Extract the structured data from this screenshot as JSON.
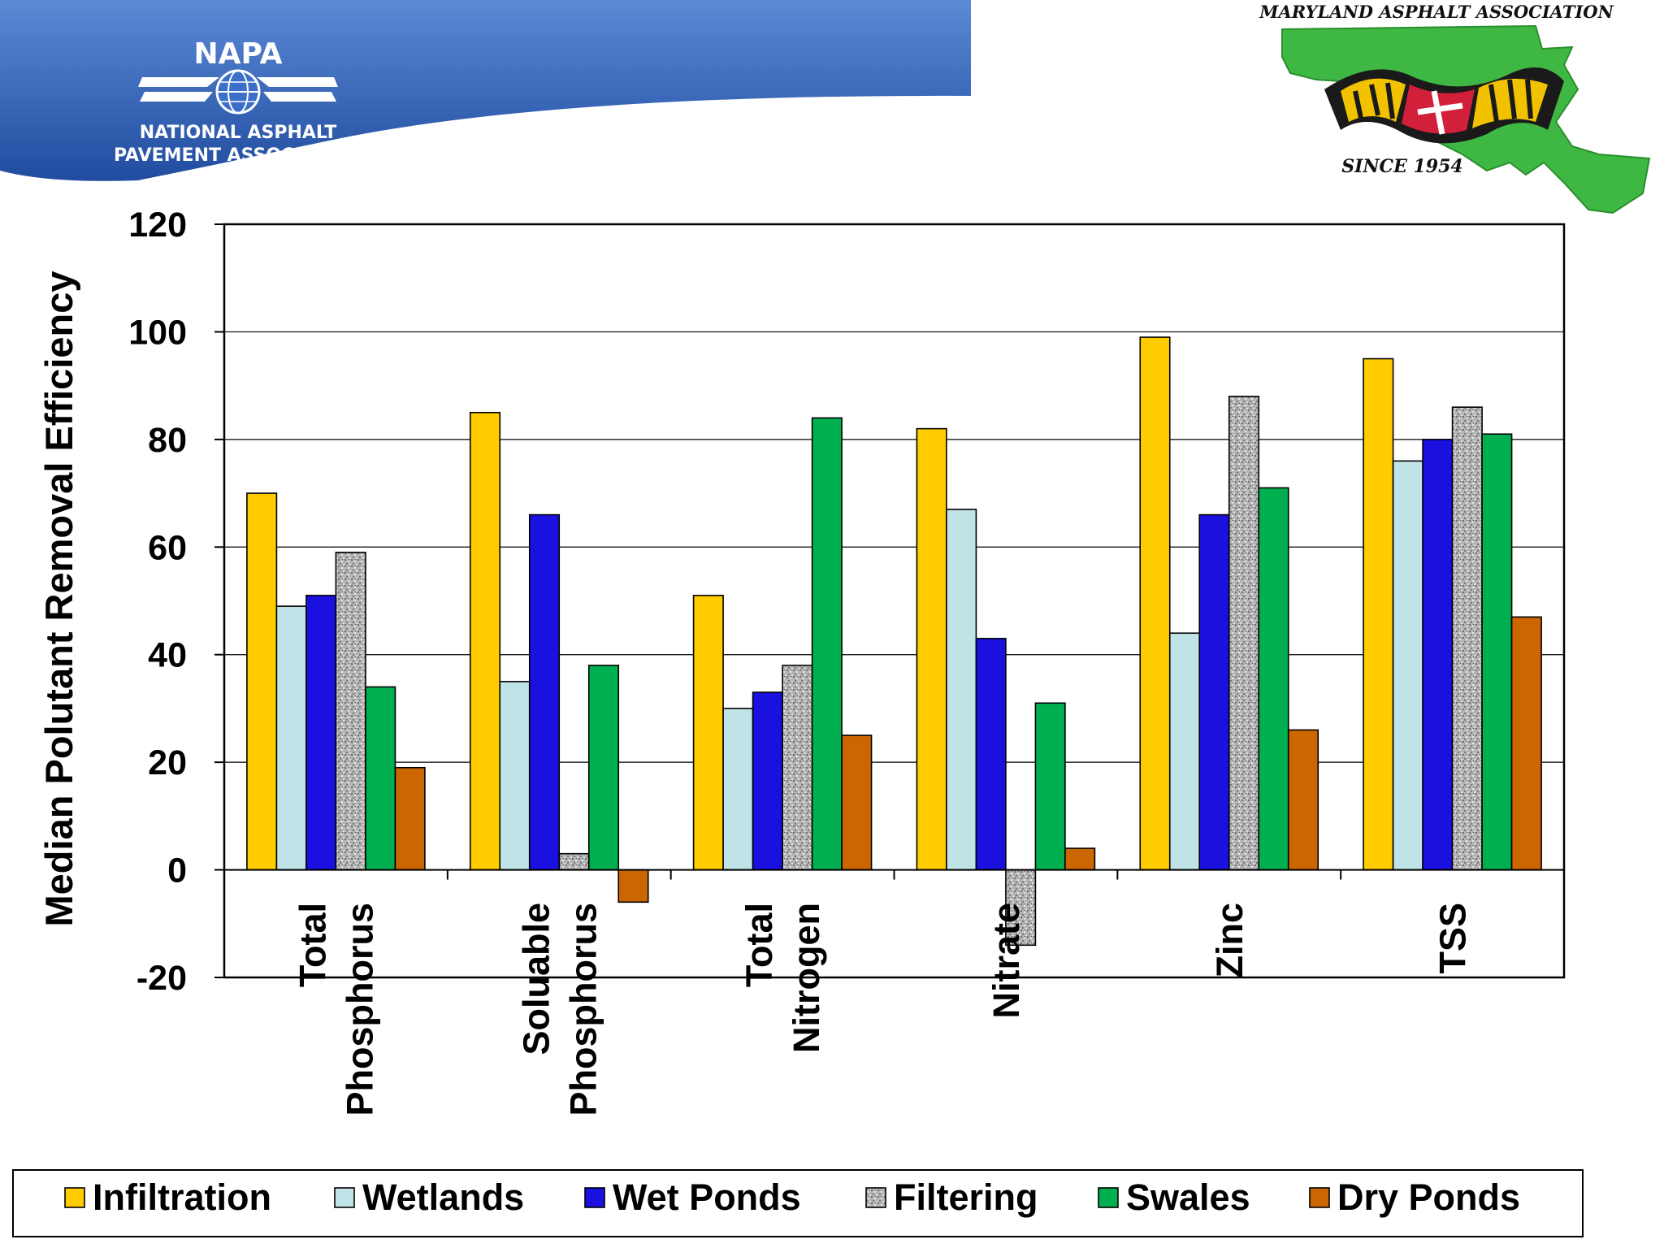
{
  "header": {
    "napa_logo": {
      "acronym": "NAPA",
      "line1": "NATIONAL ASPHALT",
      "line2": "PAVEMENT ASSOCIATION"
    },
    "mda_logo": {
      "title": "MARYLAND ASPHALT ASSOCIATION",
      "since": "SINCE 1954"
    },
    "colors": {
      "banner_top": "#5b8ad6",
      "banner_bottom": "#1f4a9e",
      "map_green": "#3fb843"
    }
  },
  "chart_data": {
    "type": "bar",
    "ylabel": "Median Polutant Removal Efficiency",
    "xlabel": "",
    "ylim": [
      -20,
      120
    ],
    "yticks": [
      120,
      100,
      80,
      60,
      40,
      20,
      0,
      -20
    ],
    "grid": true,
    "legend_position": "bottom",
    "categories": [
      [
        "Total",
        "Phosphorus"
      ],
      [
        "Soluable",
        "Phosphorus"
      ],
      [
        "Total",
        "Nitrogen"
      ],
      [
        "Nitrate"
      ],
      [
        "Zinc"
      ],
      [
        "TSS"
      ]
    ],
    "series": [
      {
        "name": "Infiltration",
        "color": "#ffcc00",
        "values": [
          70,
          85,
          51,
          82,
          99,
          95
        ]
      },
      {
        "name": "Wetlands",
        "color": "#bfe3e6",
        "values": [
          49,
          35,
          30,
          67,
          44,
          76
        ]
      },
      {
        "name": "Wet Ponds",
        "color": "#1a10e0",
        "values": [
          51,
          66,
          33,
          43,
          66,
          80
        ]
      },
      {
        "name": "Filtering",
        "color": "#b0b0b0",
        "pattern": "speckled",
        "values": [
          59,
          3,
          38,
          -14,
          88,
          86
        ]
      },
      {
        "name": "Swales",
        "color": "#00b050",
        "values": [
          34,
          38,
          84,
          31,
          71,
          81
        ]
      },
      {
        "name": "Dry Ponds",
        "color": "#cc6600",
        "values": [
          19,
          -6,
          25,
          4,
          26,
          47
        ]
      }
    ]
  }
}
